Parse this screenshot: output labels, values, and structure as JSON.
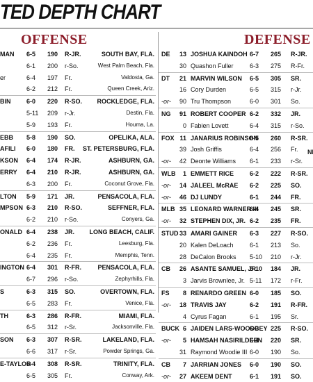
{
  "title": "TED DEPTH CHART",
  "offense": {
    "heading": "OFFENSE",
    "rows": [
      {
        "name": "MAN",
        "ht": "6-5",
        "wt": "190",
        "yr": "R-JR.",
        "home": "SOUTH BAY, FLA.",
        "bold": true,
        "start": true
      },
      {
        "name": "",
        "ht": "6-1",
        "wt": "200",
        "yr": "r-So.",
        "home": "West Palm Beach, Fla.",
        "bold": false
      },
      {
        "name": "er",
        "ht": "6-4",
        "wt": "197",
        "yr": "Fr.",
        "home": "Valdosta, Ga.",
        "bold": false
      },
      {
        "name": "",
        "ht": "6-2",
        "wt": "212",
        "yr": "Fr.",
        "home": "Queen Creek, Ariz.",
        "bold": false
      },
      {
        "name": "BIN",
        "ht": "6-0",
        "wt": "220",
        "yr": "R-SO.",
        "home": "ROCKLEDGE, FLA.",
        "bold": true,
        "start": true
      },
      {
        "name": "",
        "ht": "5-11",
        "wt": "209",
        "yr": "r-Jr.",
        "home": "Destin, Fla.",
        "bold": false
      },
      {
        "name": "",
        "ht": "5-9",
        "wt": "193",
        "yr": "Fr.",
        "home": "Houma, La.",
        "bold": false
      },
      {
        "name": "EBB",
        "ht": "5-8",
        "wt": "190",
        "yr": "SO.",
        "home": "OPELIKA, ALA.",
        "bold": true,
        "start": true
      },
      {
        "name": "AFILI",
        "ht": "6-0",
        "wt": "180",
        "yr": "FR.",
        "home": "ST. PETERSBURG, FLA.",
        "bold": true
      },
      {
        "name": "KSON",
        "ht": "6-4",
        "wt": "174",
        "yr": "R-JR.",
        "home": "ASHBURN, GA.",
        "bold": true
      },
      {
        "name": "ERRY",
        "ht": "6-4",
        "wt": "210",
        "yr": "R-JR.",
        "home": "ASHBURN, GA.",
        "bold": true
      },
      {
        "name": "",
        "ht": "6-3",
        "wt": "200",
        "yr": "Fr.",
        "home": "Coconut Grove, Fla.",
        "bold": false
      },
      {
        "name": "LTON",
        "ht": "5-9",
        "wt": "171",
        "yr": "JR.",
        "home": "PENSACOLA, FLA.",
        "bold": true,
        "start": true
      },
      {
        "name": "MPSON",
        "ht": "6-3",
        "wt": "210",
        "yr": "R-SO.",
        "home": "SEFFNER, FLA.",
        "bold": true
      },
      {
        "name": "",
        "ht": "6-2",
        "wt": "210",
        "yr": "r-So.",
        "home": "Conyers, Ga.",
        "bold": false
      },
      {
        "name": "ONALD",
        "ht": "6-4",
        "wt": "238",
        "yr": "JR.",
        "home": "LONG BEACH, CALIF.",
        "bold": true,
        "start": true
      },
      {
        "name": "",
        "ht": "6-2",
        "wt": "236",
        "yr": "Fr.",
        "home": "Leesburg, Fla.",
        "bold": false
      },
      {
        "name": "",
        "ht": "6-4",
        "wt": "235",
        "yr": "Fr.",
        "home": "Memphis, Tenn.",
        "bold": false
      },
      {
        "name": "INGTON",
        "ht": "6-4",
        "wt": "301",
        "yr": "R-FR.",
        "home": "PENSACOLA, FLA.",
        "bold": true,
        "start": true
      },
      {
        "name": "",
        "ht": "6-7",
        "wt": "296",
        "yr": "r-So.",
        "home": "Zephyrhills, Fla.",
        "bold": false
      },
      {
        "name": "S",
        "ht": "6-3",
        "wt": "315",
        "yr": "SO.",
        "home": "OVERTOWN, FLA.",
        "bold": true,
        "start": true
      },
      {
        "name": "",
        "ht": "6-5",
        "wt": "283",
        "yr": "Fr.",
        "home": "Venice, Fla.",
        "bold": false
      },
      {
        "name": "TH",
        "ht": "6-3",
        "wt": "286",
        "yr": "R-FR.",
        "home": "MIAMI, FLA.",
        "bold": true,
        "start": true
      },
      {
        "name": "",
        "ht": "6-5",
        "wt": "312",
        "yr": "r-Sr.",
        "home": "Jacksonville, Fla.",
        "bold": false
      },
      {
        "name": "SON",
        "ht": "6-3",
        "wt": "307",
        "yr": "R-SR.",
        "home": "LAKELAND, FLA.",
        "bold": true,
        "start": true
      },
      {
        "name": "",
        "ht": "6-6",
        "wt": "317",
        "yr": "r-Sr.",
        "home": "Powder Springs, Ga.",
        "bold": false
      },
      {
        "name": "E-TAYLOR",
        "ht": "6-4",
        "wt": "308",
        "yr": "R-SR.",
        "home": "TRINITY, FLA.",
        "bold": true,
        "start": true
      },
      {
        "name": "",
        "ht": "6-5",
        "wt": "305",
        "yr": "Fr.",
        "home": "Conway, Ark.",
        "bold": false
      }
    ]
  },
  "defense": {
    "heading": "DEFENSE",
    "rows": [
      {
        "pos": "DE",
        "num": "13",
        "name": "JOSHUA KAINDOH",
        "ht": "6-7",
        "wt": "265",
        "yr": "R-JR.",
        "bold": true,
        "start": true
      },
      {
        "pos": "",
        "num": "30",
        "name": "Quashon Fuller",
        "ht": "6-3",
        "wt": "275",
        "yr": "R-Fr.",
        "bold": false
      },
      {
        "pos": "DT",
        "num": "21",
        "name": "MARVIN WILSON",
        "ht": "6-5",
        "wt": "305",
        "yr": "SR.",
        "bold": true,
        "start": true
      },
      {
        "pos": "",
        "num": "16",
        "name": "Cory Durden",
        "ht": "6-5",
        "wt": "315",
        "yr": "r-Jr.",
        "bold": false
      },
      {
        "pos": "-or-",
        "num": "90",
        "name": "Tru Thompson",
        "ht": "6-0",
        "wt": "301",
        "yr": "So.",
        "bold": false
      },
      {
        "pos": "NG",
        "num": "91",
        "name": "ROBERT COOPER",
        "ht": "6-2",
        "wt": "332",
        "yr": "JR.",
        "bold": true,
        "start": true
      },
      {
        "pos": "",
        "num": "0",
        "name": "Fabien Lovett",
        "ht": "6-4",
        "wt": "315",
        "yr": "r-So.",
        "bold": false
      },
      {
        "pos": "FOX",
        "num": "11",
        "name": "JANARIUS ROBINSON",
        "ht": "6-5",
        "wt": "260",
        "yr": "R-SR.",
        "bold": true,
        "start": true
      },
      {
        "pos": "",
        "num": "39",
        "name": "Josh Griffis",
        "ht": "6-4",
        "wt": "256",
        "yr": "Fr.",
        "bold": false
      },
      {
        "pos": "-or-",
        "num": "42",
        "name": "Deonte Williams",
        "ht": "6-1",
        "wt": "233",
        "yr": "r-Sr.",
        "bold": false
      },
      {
        "pos": "WLB",
        "num": "1",
        "name": "EMMETT RICE",
        "ht": "6-2",
        "wt": "222",
        "yr": "R-SR.",
        "bold": true,
        "start": true
      },
      {
        "pos": "-or-",
        "num": "14",
        "name": "JALEEL McRAE",
        "ht": "6-2",
        "wt": "225",
        "yr": "SO.",
        "bold": true
      },
      {
        "pos": "-or-",
        "num": "46",
        "name": "DJ LUNDY",
        "ht": "6-1",
        "wt": "244",
        "yr": "FR.",
        "bold": true
      },
      {
        "pos": "MLB",
        "num": "35",
        "name": "LEONARD WARNER III",
        "ht": "6-4",
        "wt": "245",
        "yr": "SR.",
        "bold": true,
        "start": true
      },
      {
        "pos": "-or-",
        "num": "32",
        "name": "STEPHEN DIX, JR.",
        "ht": "6-2",
        "wt": "235",
        "yr": "FR.",
        "bold": true
      },
      {
        "pos": "STUD",
        "num": "33",
        "name": "AMARI GAINER",
        "ht": "6-3",
        "wt": "227",
        "yr": "R-SO.",
        "bold": true,
        "start": true
      },
      {
        "pos": "",
        "num": "20",
        "name": "Kalen DeLoach",
        "ht": "6-1",
        "wt": "213",
        "yr": "So.",
        "bold": false
      },
      {
        "pos": "",
        "num": "28",
        "name": "DeCalon Brooks",
        "ht": "5-10",
        "wt": "210",
        "yr": "r-Jr.",
        "bold": false
      },
      {
        "pos": "CB",
        "num": "26",
        "name": "ASANTE SAMUEL, JR.",
        "ht": "5-10",
        "wt": "184",
        "yr": "JR.",
        "bold": true,
        "start": true
      },
      {
        "pos": "",
        "num": "3",
        "name": "Jarvis Brownlee, Jr.",
        "ht": "5-11",
        "wt": "172",
        "yr": "r-Fr.",
        "bold": false
      },
      {
        "pos": "FS",
        "num": "8",
        "name": "RENARDO GREEN",
        "ht": "6-0",
        "wt": "185",
        "yr": "SO.",
        "bold": true,
        "start": true
      },
      {
        "pos": "-or-",
        "num": "18",
        "name": "TRAVIS JAY",
        "ht": "6-2",
        "wt": "191",
        "yr": "R-FR.",
        "bold": true
      },
      {
        "pos": "",
        "num": "4",
        "name": "Cyrus Fagan",
        "ht": "6-1",
        "wt": "195",
        "yr": "Sr.",
        "bold": false
      },
      {
        "pos": "BUCK",
        "num": "6",
        "name": "JAIDEN LARS-WOODBEY",
        "ht": "6-3",
        "wt": "225",
        "yr": "R-SO.",
        "bold": true,
        "start": true
      },
      {
        "pos": "-or-",
        "num": "5",
        "name": "HAMSAH NASIRILDEEN",
        "ht": "6-4",
        "wt": "220",
        "yr": "SR.",
        "bold": true
      },
      {
        "pos": "",
        "num": "31",
        "name": "Raymond Woodie III",
        "ht": "6-0",
        "wt": "190",
        "yr": "So.",
        "bold": false
      },
      {
        "pos": "CB",
        "num": "7",
        "name": "JARRIAN JONES",
        "ht": "6-0",
        "wt": "190",
        "yr": "SO.",
        "bold": true,
        "start": true
      },
      {
        "pos": "-or-",
        "num": "27",
        "name": "AKEEM DENT",
        "ht": "6-1",
        "wt": "191",
        "yr": "SO.",
        "bold": true
      }
    ],
    "overflow_text": "NE"
  }
}
